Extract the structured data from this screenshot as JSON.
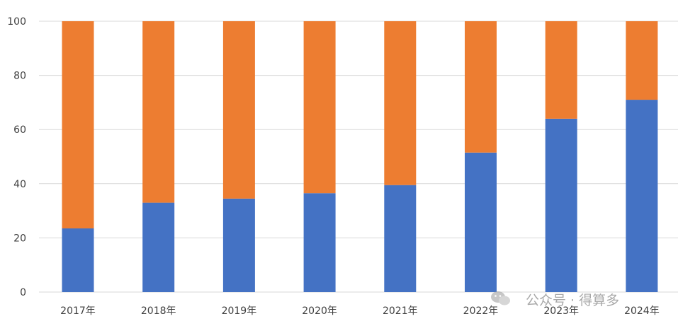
{
  "chart_data": {
    "type": "bar",
    "stacked": true,
    "categories": [
      "2017年",
      "2018年",
      "2019年",
      "2020年",
      "2021年",
      "2022年",
      "2023年",
      "2024年"
    ],
    "series": [
      {
        "values": [
          23.5,
          33,
          34.5,
          36.5,
          39.5,
          51.5,
          64,
          71
        ],
        "color": "#4472c4"
      },
      {
        "values": [
          76.5,
          67,
          65.5,
          63.5,
          60.5,
          48.5,
          36,
          29
        ],
        "color": "#ed7d31"
      }
    ],
    "ylim": [
      0,
      100
    ],
    "yticks": [
      0,
      20,
      40,
      60,
      80,
      100
    ],
    "grid": true,
    "legend": "none"
  },
  "watermark": {
    "text": "公众号 · 得算多",
    "icon": "wechat-icon"
  }
}
